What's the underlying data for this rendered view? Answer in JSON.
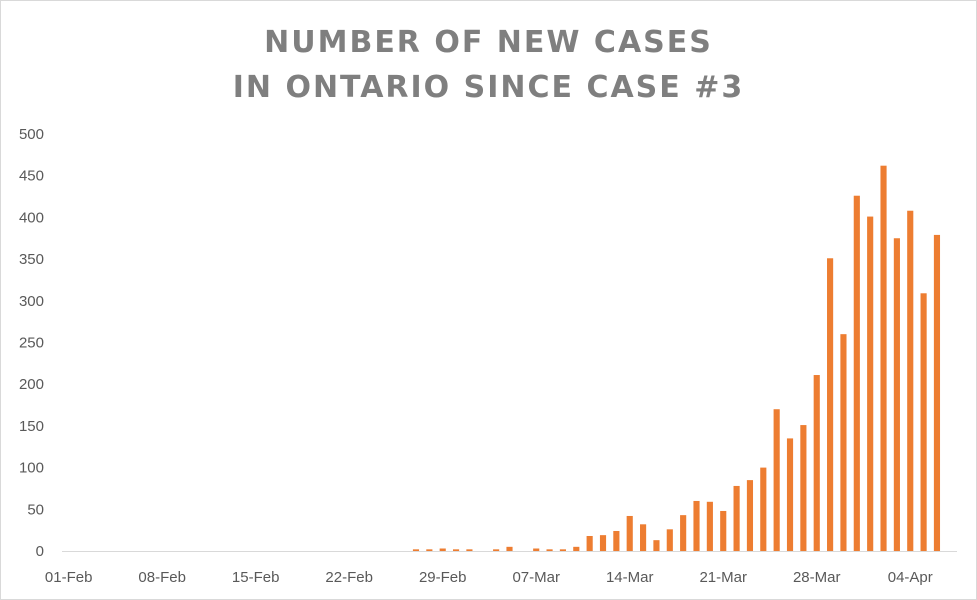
{
  "chart_data": {
    "type": "bar",
    "title_lines": [
      "NUMBER OF NEW CASES",
      "IN ONTARIO SINCE CASE #3"
    ],
    "xlabel": "",
    "ylabel": "",
    "ylim": [
      0,
      500
    ],
    "yticks": [
      0,
      50,
      100,
      150,
      200,
      250,
      300,
      350,
      400,
      450,
      500
    ],
    "xtick_labels": [
      "01-Feb",
      "08-Feb",
      "15-Feb",
      "22-Feb",
      "29-Feb",
      "07-Mar",
      "14-Mar",
      "21-Mar",
      "28-Mar",
      "04-Apr"
    ],
    "grid": false,
    "legend": "none",
    "bar_color": "#ed7d31",
    "x": [
      "01-Feb",
      "02-Feb",
      "03-Feb",
      "04-Feb",
      "05-Feb",
      "06-Feb",
      "07-Feb",
      "08-Feb",
      "09-Feb",
      "10-Feb",
      "11-Feb",
      "12-Feb",
      "13-Feb",
      "14-Feb",
      "15-Feb",
      "16-Feb",
      "17-Feb",
      "18-Feb",
      "19-Feb",
      "20-Feb",
      "21-Feb",
      "22-Feb",
      "23-Feb",
      "24-Feb",
      "25-Feb",
      "26-Feb",
      "27-Feb",
      "28-Feb",
      "29-Feb",
      "01-Mar",
      "02-Mar",
      "03-Mar",
      "04-Mar",
      "05-Mar",
      "06-Mar",
      "07-Mar",
      "08-Mar",
      "09-Mar",
      "10-Mar",
      "11-Mar",
      "12-Mar",
      "13-Mar",
      "14-Mar",
      "15-Mar",
      "16-Mar",
      "17-Mar",
      "18-Mar",
      "19-Mar",
      "20-Mar",
      "21-Mar",
      "22-Mar",
      "23-Mar",
      "24-Mar",
      "25-Mar",
      "26-Mar",
      "27-Mar",
      "28-Mar",
      "29-Mar",
      "30-Mar",
      "31-Mar",
      "01-Apr",
      "02-Apr",
      "03-Apr",
      "04-Apr",
      "05-Apr",
      "06-Apr",
      "07-Apr"
    ],
    "values": [
      0,
      0,
      0,
      0,
      0,
      0,
      0,
      0,
      0,
      0,
      0,
      0,
      0,
      0,
      0,
      0,
      0,
      0,
      0,
      0,
      0,
      0,
      0,
      0,
      0,
      0,
      2,
      2,
      3,
      2,
      2,
      0,
      2,
      5,
      0,
      3,
      2,
      2,
      5,
      18,
      19,
      24,
      42,
      32,
      13,
      26,
      43,
      60,
      59,
      48,
      78,
      85,
      100,
      170,
      135,
      151,
      211,
      351,
      260,
      426,
      401,
      462,
      375,
      408,
      309,
      379,
      0
    ]
  }
}
